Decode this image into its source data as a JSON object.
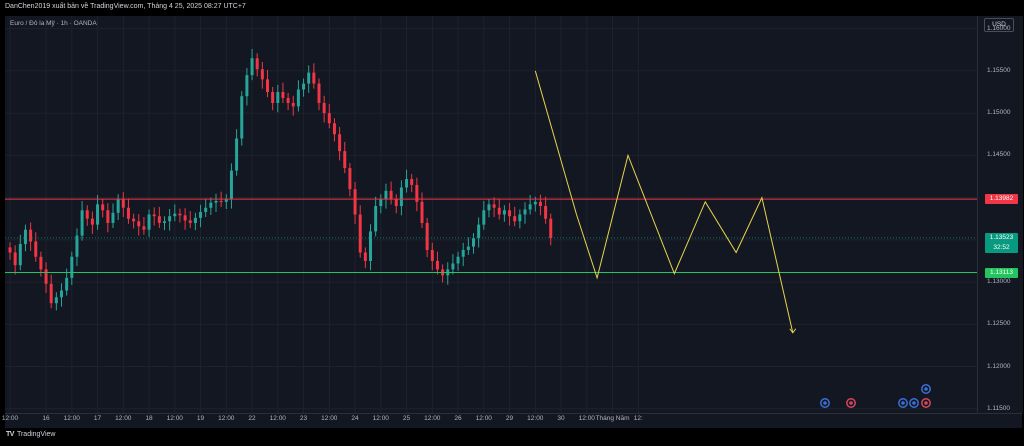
{
  "header": {
    "title": "DanChen2019 xuất bản về TradingView.com, Tháng 4 25, 2025 08:27 UTC+7",
    "symbol": "Euro / Đô la Mỹ · 1h · OANDA",
    "currency_button": "USD"
  },
  "footer": {
    "logo_mark": "TV",
    "brand": "TradingView"
  },
  "colors": {
    "background": "#131722",
    "up_candle": "#26a69a",
    "down_candle": "#f23645",
    "resistance_line": "#f23645",
    "support_line": "#22c55e",
    "current_price_tag": "#089981",
    "pattern_line": "#e8d44d"
  },
  "price_labels": {
    "resistance": "1.13982",
    "current": "1.13523",
    "countdown": "32:52",
    "support": "1.13113"
  },
  "chart_data": {
    "type": "candlestick",
    "title": "",
    "symbol": "EURUSD",
    "interval": "1h",
    "ylim": [
      1.1145,
      1.1615
    ],
    "yticks": [
      "1.16000",
      "1.15500",
      "1.15000",
      "1.14500",
      "1.14000",
      "1.13500",
      "1.13000",
      "1.12500",
      "1.12000",
      "1.11500"
    ],
    "ytick_values": [
      1.16,
      1.155,
      1.15,
      1.145,
      1.14,
      1.135,
      1.13,
      1.125,
      1.12,
      1.115
    ],
    "xticks": [
      "12:00",
      "16",
      "12:00",
      "17",
      "12:00",
      "18",
      "12:00",
      "19",
      "12:00",
      "22",
      "12:00",
      "23",
      "12:00",
      "24",
      "12:00",
      "25",
      "12:00",
      "26",
      "12:00",
      "29",
      "12:00",
      "30",
      "12:00",
      "Tháng Năm",
      "12:"
    ],
    "xtick_index": [
      0,
      7,
      12,
      17,
      22,
      27,
      32,
      37,
      42,
      47,
      52,
      57,
      62,
      67,
      72,
      77,
      82,
      87,
      92,
      97,
      102,
      107,
      112,
      117,
      122
    ],
    "horizontal_lines": [
      {
        "name": "resistance",
        "value": 1.13982
      },
      {
        "name": "support",
        "value": 1.13113
      }
    ],
    "current_price": 1.13523,
    "closes": [
      1.1335,
      1.132,
      1.1345,
      1.1362,
      1.1348,
      1.133,
      1.1315,
      1.1298,
      1.1275,
      1.1282,
      1.129,
      1.1305,
      1.133,
      1.1355,
      1.1385,
      1.1375,
      1.1368,
      1.1392,
      1.1385,
      1.137,
      1.1382,
      1.1398,
      1.1388,
      1.1375,
      1.1372,
      1.1366,
      1.1362,
      1.138,
      1.1378,
      1.137,
      1.1372,
      1.1378,
      1.1381,
      1.1379,
      1.1373,
      1.137,
      1.1376,
      1.1383,
      1.1388,
      1.1394,
      1.1396,
      1.1395,
      1.1398,
      1.1432,
      1.147,
      1.152,
      1.1545,
      1.1565,
      1.1552,
      1.154,
      1.1525,
      1.1512,
      1.1525,
      1.1518,
      1.1512,
      1.1508,
      1.1528,
      1.1535,
      1.1548,
      1.1535,
      1.1512,
      1.15,
      1.1488,
      1.1475,
      1.1455,
      1.1435,
      1.141,
      1.138,
      1.1335,
      1.1325,
      1.136,
      1.139,
      1.1398,
      1.1408,
      1.1398,
      1.139,
      1.1412,
      1.1422,
      1.1415,
      1.1395,
      1.137,
      1.1338,
      1.1325,
      1.1315,
      1.1308,
      1.1315,
      1.1322,
      1.133,
      1.1338,
      1.1342,
      1.1352,
      1.1368,
      1.1385,
      1.1392,
      1.1388,
      1.138,
      1.1385,
      1.1378,
      1.1372,
      1.138,
      1.1386,
      1.1392,
      1.1395,
      1.139,
      1.1375,
      1.1352
    ],
    "pattern_path": [
      [
        102,
        1.155
      ],
      [
        110,
        1.138
      ],
      [
        114,
        1.1305
      ],
      [
        120,
        1.145
      ],
      [
        129,
        1.131
      ],
      [
        135,
        1.1395
      ],
      [
        141,
        1.1335
      ],
      [
        146,
        1.14
      ],
      [
        152,
        1.124
      ]
    ]
  }
}
